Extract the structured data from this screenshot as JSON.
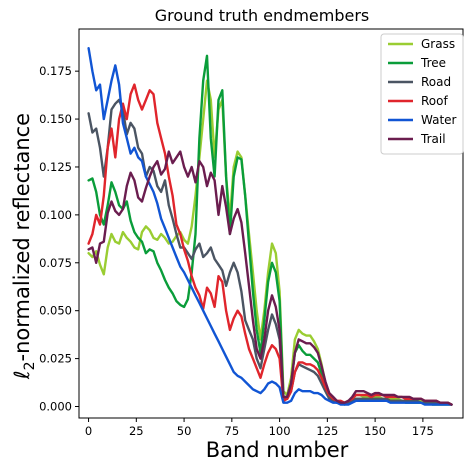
{
  "chart_data": {
    "type": "line",
    "title": "Ground truth endmembers",
    "xlabel": "Band number",
    "ylabel": "ℓ2-normalized reflectance",
    "ylabel_parts": {
      "main": "ℓ",
      "sub": "2",
      "rest": "-normalized reflectance"
    },
    "xlim": [
      -5,
      196
    ],
    "ylim": [
      -0.006,
      0.197
    ],
    "xticks": [
      0,
      25,
      50,
      75,
      100,
      125,
      150,
      175
    ],
    "yticks": [
      0.0,
      0.025,
      0.05,
      0.075,
      0.1,
      0.125,
      0.15,
      0.175
    ],
    "xtick_labels": [
      "0",
      "25",
      "50",
      "75",
      "100",
      "125",
      "150",
      "175"
    ],
    "ytick_labels": [
      "0.000",
      "0.025",
      "0.050",
      "0.075",
      "0.100",
      "0.125",
      "0.150",
      "0.175"
    ],
    "grid": false,
    "legend_position": "top-right",
    "x": [
      0,
      2,
      4,
      6,
      8,
      10,
      12,
      14,
      16,
      18,
      20,
      22,
      24,
      26,
      28,
      30,
      32,
      34,
      36,
      38,
      40,
      42,
      44,
      46,
      48,
      50,
      52,
      54,
      56,
      58,
      60,
      62,
      64,
      66,
      68,
      70,
      72,
      74,
      76,
      78,
      80,
      82,
      84,
      86,
      88,
      90,
      92,
      94,
      96,
      98,
      100,
      102,
      104,
      106,
      108,
      110,
      112,
      114,
      116,
      118,
      120,
      122,
      124,
      126,
      128,
      130,
      132,
      134,
      136,
      138,
      140,
      142,
      144,
      146,
      148,
      150,
      152,
      154,
      156,
      158,
      160,
      162,
      164,
      166,
      168,
      170,
      172,
      174,
      176,
      178,
      180,
      182,
      184,
      186,
      188,
      190
    ],
    "series": [
      {
        "name": "Grass",
        "color": "#9acd32",
        "values": [
          0.08,
          0.078,
          0.081,
          0.074,
          0.069,
          0.083,
          0.09,
          0.086,
          0.085,
          0.091,
          0.088,
          0.086,
          0.083,
          0.082,
          0.091,
          0.094,
          0.092,
          0.088,
          0.087,
          0.09,
          0.088,
          0.085,
          0.086,
          0.089,
          0.091,
          0.087,
          0.085,
          0.094,
          0.11,
          0.13,
          0.15,
          0.17,
          0.16,
          0.13,
          0.155,
          0.16,
          0.12,
          0.098,
          0.125,
          0.133,
          0.13,
          0.11,
          0.09,
          0.07,
          0.05,
          0.035,
          0.05,
          0.07,
          0.085,
          0.08,
          0.06,
          0.008,
          0.006,
          0.015,
          0.035,
          0.04,
          0.038,
          0.037,
          0.037,
          0.034,
          0.03,
          0.022,
          0.012,
          0.006,
          0.004,
          0.003,
          0.002,
          0.002,
          0.003,
          0.004,
          0.006,
          0.006,
          0.005,
          0.005,
          0.004,
          0.005,
          0.005,
          0.004,
          0.004,
          0.004,
          0.004,
          0.004,
          0.003,
          0.003,
          0.003,
          0.003,
          0.003,
          0.003,
          0.002,
          0.002,
          0.002,
          0.002,
          0.002,
          0.002,
          0.002,
          0.001
        ]
      },
      {
        "name": "Tree",
        "color": "#0a9d3a",
        "values": [
          0.118,
          0.119,
          0.112,
          0.1,
          0.095,
          0.105,
          0.117,
          0.112,
          0.105,
          0.103,
          0.107,
          0.097,
          0.091,
          0.088,
          0.086,
          0.08,
          0.082,
          0.081,
          0.075,
          0.071,
          0.066,
          0.062,
          0.059,
          0.055,
          0.053,
          0.052,
          0.056,
          0.07,
          0.09,
          0.14,
          0.17,
          0.183,
          0.14,
          0.12,
          0.16,
          0.165,
          0.12,
          0.09,
          0.12,
          0.13,
          0.129,
          0.11,
          0.085,
          0.06,
          0.04,
          0.028,
          0.045,
          0.065,
          0.075,
          0.07,
          0.055,
          0.005,
          0.005,
          0.012,
          0.028,
          0.032,
          0.029,
          0.027,
          0.027,
          0.025,
          0.023,
          0.017,
          0.01,
          0.005,
          0.003,
          0.002,
          0.002,
          0.001,
          0.002,
          0.003,
          0.004,
          0.004,
          0.004,
          0.003,
          0.003,
          0.004,
          0.004,
          0.003,
          0.003,
          0.003,
          0.003,
          0.003,
          0.003,
          0.002,
          0.002,
          0.002,
          0.002,
          0.002,
          0.002,
          0.002,
          0.001,
          0.001,
          0.001,
          0.001,
          0.001,
          0.001
        ]
      },
      {
        "name": "Road",
        "color": "#4b5563",
        "values": [
          0.153,
          0.143,
          0.145,
          0.135,
          0.12,
          0.135,
          0.155,
          0.158,
          0.16,
          0.155,
          0.142,
          0.148,
          0.145,
          0.135,
          0.132,
          0.12,
          0.125,
          0.123,
          0.115,
          0.112,
          0.118,
          0.105,
          0.098,
          0.09,
          0.083,
          0.083,
          0.08,
          0.077,
          0.082,
          0.085,
          0.078,
          0.08,
          0.083,
          0.077,
          0.074,
          0.071,
          0.063,
          0.07,
          0.075,
          0.07,
          0.06,
          0.045,
          0.04,
          0.035,
          0.025,
          0.02,
          0.03,
          0.04,
          0.048,
          0.043,
          0.035,
          0.004,
          0.004,
          0.008,
          0.018,
          0.022,
          0.021,
          0.02,
          0.019,
          0.018,
          0.016,
          0.012,
          0.008,
          0.004,
          0.003,
          0.002,
          0.002,
          0.002,
          0.002,
          0.003,
          0.004,
          0.004,
          0.004,
          0.004,
          0.004,
          0.004,
          0.004,
          0.004,
          0.004,
          0.003,
          0.003,
          0.003,
          0.003,
          0.003,
          0.003,
          0.003,
          0.003,
          0.002,
          0.002,
          0.002,
          0.002,
          0.002,
          0.002,
          0.002,
          0.002,
          0.001
        ]
      },
      {
        "name": "Roof",
        "color": "#e0252c",
        "values": [
          0.085,
          0.09,
          0.1,
          0.095,
          0.11,
          0.135,
          0.145,
          0.13,
          0.15,
          0.158,
          0.15,
          0.163,
          0.168,
          0.16,
          0.155,
          0.16,
          0.165,
          0.163,
          0.148,
          0.14,
          0.132,
          0.12,
          0.11,
          0.095,
          0.09,
          0.082,
          0.076,
          0.068,
          0.062,
          0.058,
          0.051,
          0.062,
          0.059,
          0.052,
          0.068,
          0.065,
          0.05,
          0.04,
          0.046,
          0.05,
          0.047,
          0.038,
          0.03,
          0.025,
          0.02,
          0.015,
          0.022,
          0.028,
          0.032,
          0.03,
          0.025,
          0.003,
          0.004,
          0.008,
          0.018,
          0.023,
          0.023,
          0.022,
          0.022,
          0.021,
          0.019,
          0.015,
          0.01,
          0.006,
          0.004,
          0.003,
          0.003,
          0.002,
          0.003,
          0.004,
          0.006,
          0.006,
          0.006,
          0.006,
          0.005,
          0.006,
          0.006,
          0.006,
          0.005,
          0.005,
          0.005,
          0.005,
          0.005,
          0.004,
          0.004,
          0.004,
          0.004,
          0.004,
          0.003,
          0.003,
          0.003,
          0.003,
          0.002,
          0.002,
          0.002,
          0.001
        ]
      },
      {
        "name": "Water",
        "color": "#1155d4",
        "values": [
          0.187,
          0.175,
          0.165,
          0.168,
          0.15,
          0.16,
          0.17,
          0.178,
          0.168,
          0.148,
          0.14,
          0.132,
          0.135,
          0.13,
          0.128,
          0.12,
          0.116,
          0.112,
          0.106,
          0.098,
          0.093,
          0.088,
          0.083,
          0.078,
          0.073,
          0.07,
          0.066,
          0.062,
          0.058,
          0.054,
          0.05,
          0.046,
          0.042,
          0.038,
          0.034,
          0.03,
          0.026,
          0.022,
          0.018,
          0.016,
          0.015,
          0.013,
          0.011,
          0.009,
          0.008,
          0.007,
          0.009,
          0.012,
          0.013,
          0.012,
          0.01,
          0.002,
          0.002,
          0.003,
          0.007,
          0.009,
          0.008,
          0.008,
          0.008,
          0.007,
          0.007,
          0.006,
          0.004,
          0.003,
          0.002,
          0.002,
          0.001,
          0.001,
          0.001,
          0.002,
          0.003,
          0.003,
          0.003,
          0.003,
          0.003,
          0.003,
          0.003,
          0.003,
          0.003,
          0.002,
          0.002,
          0.002,
          0.002,
          0.002,
          0.002,
          0.002,
          0.002,
          0.002,
          0.001,
          0.001,
          0.001,
          0.001,
          0.001,
          0.001,
          0.001,
          0.001
        ]
      },
      {
        "name": "Trail",
        "color": "#6b1d4f",
        "values": [
          0.082,
          0.083,
          0.075,
          0.085,
          0.086,
          0.101,
          0.107,
          0.102,
          0.1,
          0.103,
          0.115,
          0.122,
          0.118,
          0.109,
          0.107,
          0.114,
          0.12,
          0.125,
          0.128,
          0.121,
          0.124,
          0.133,
          0.127,
          0.13,
          0.133,
          0.125,
          0.12,
          0.125,
          0.117,
          0.128,
          0.125,
          0.115,
          0.122,
          0.118,
          0.1,
          0.115,
          0.104,
          0.09,
          0.098,
          0.103,
          0.096,
          0.08,
          0.063,
          0.045,
          0.03,
          0.025,
          0.035,
          0.05,
          0.058,
          0.052,
          0.04,
          0.005,
          0.005,
          0.012,
          0.028,
          0.035,
          0.034,
          0.033,
          0.033,
          0.031,
          0.028,
          0.021,
          0.013,
          0.007,
          0.005,
          0.003,
          0.002,
          0.002,
          0.003,
          0.005,
          0.008,
          0.008,
          0.008,
          0.007,
          0.006,
          0.007,
          0.007,
          0.006,
          0.006,
          0.006,
          0.006,
          0.005,
          0.005,
          0.005,
          0.005,
          0.004,
          0.004,
          0.004,
          0.003,
          0.003,
          0.003,
          0.003,
          0.002,
          0.002,
          0.002,
          0.001
        ]
      }
    ]
  }
}
